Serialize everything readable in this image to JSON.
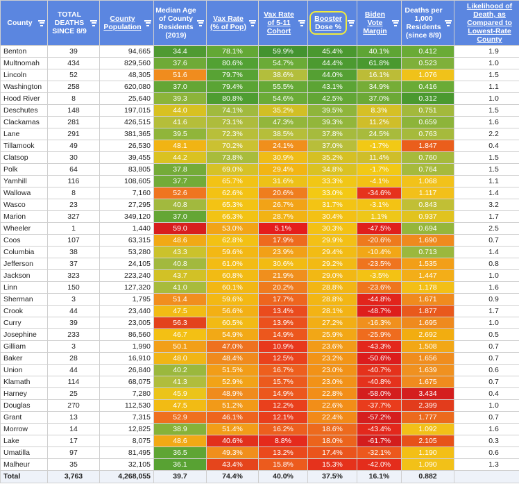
{
  "headers": [
    {
      "label": "County",
      "underline": false
    },
    {
      "label": "TOTAL DEATHS SINCE 8/9",
      "underline": false
    },
    {
      "label": "County Population",
      "underline": true
    },
    {
      "label": "Median Age of County Residents (2019)",
      "underline": false
    },
    {
      "label": "Vax Rate (% of Pop)",
      "underline": true
    },
    {
      "label": "Vax Rate of 5-11 Cohort",
      "underline": true
    },
    {
      "label": "Booster Dose %",
      "underline": true
    },
    {
      "label": "Biden Vote Margin",
      "underline": true
    },
    {
      "label": "Deaths per 1,000 Residents (since 8/9)",
      "underline": false
    },
    {
      "label": "Likelihood of Death, as Compared to Lowest-Rate County",
      "underline": true
    }
  ],
  "rows": [
    {
      "county": "Benton",
      "deaths": "39",
      "pop": "94,665",
      "age": "34.4",
      "vax": "78.1%",
      "cohort": "59.9%",
      "booster": "45.4%",
      "biden": "40.1%",
      "dpk": "0.412",
      "likely": "1.9",
      "c": [
        "#4f9a32",
        "#63a835",
        "#43932f",
        "#4a982f",
        "#5ea534",
        "#6aab36"
      ]
    },
    {
      "county": "Multnomah",
      "deaths": "434",
      "pop": "829,560",
      "age": "37.6",
      "vax": "80.6%",
      "cohort": "54.7%",
      "booster": "44.4%",
      "biden": "61.8%",
      "dpk": "0.523",
      "likely": "1.0",
      "c": [
        "#6faa37",
        "#52a133",
        "#6bab37",
        "#4c9a30",
        "#4a992f",
        "#7fb03a"
      ]
    },
    {
      "county": "Lincoln",
      "deaths": "52",
      "pop": "48,305",
      "age": "51.6",
      "vax": "79.7%",
      "cohort": "38.6%",
      "booster": "44.0%",
      "biden": "16.1%",
      "dpk": "1.076",
      "likely": "1.5",
      "c": [
        "#f08c1e",
        "#58a334",
        "#b3be3c",
        "#55a033",
        "#bcbc37",
        "#f0c21a"
      ]
    },
    {
      "county": "Washington",
      "deaths": "258",
      "pop": "620,080",
      "age": "37.0",
      "vax": "79.4%",
      "cohort": "55.5%",
      "booster": "43.1%",
      "biden": "34.9%",
      "dpk": "0.416",
      "likely": "1.1",
      "c": [
        "#64a635",
        "#5aa434",
        "#66a936",
        "#5ca434",
        "#76ad37",
        "#6aab36"
      ]
    },
    {
      "county": "Hood River",
      "deaths": "8",
      "pop": "25,640",
      "age": "39.3",
      "vax": "80.8%",
      "cohort": "54.6%",
      "booster": "42.5%",
      "biden": "37.0%",
      "dpk": "0.312",
      "likely": "1.0",
      "c": [
        "#8cb43a",
        "#4e9d31",
        "#6bab37",
        "#62a635",
        "#6ca936",
        "#4a992f"
      ]
    },
    {
      "county": "Deschutes",
      "deaths": "148",
      "pop": "197,015",
      "age": "44.0",
      "vax": "74.1%",
      "cohort": "35.2%",
      "booster": "39.5%",
      "biden": "8.3%",
      "dpk": "0.751",
      "likely": "1.5",
      "c": [
        "#d8c122",
        "#a1ba3e",
        "#d2bf25",
        "#8fb53b",
        "#d6c026",
        "#a3b93c"
      ]
    },
    {
      "county": "Clackamas",
      "deaths": "281",
      "pop": "426,515",
      "age": "41.6",
      "vax": "73.1%",
      "cohort": "47.3%",
      "booster": "39.3%",
      "biden": "11.2%",
      "dpk": "0.659",
      "likely": "1.6",
      "c": [
        "#b5be3a",
        "#aebc3c",
        "#93b63b",
        "#92b63b",
        "#cfbe2a",
        "#8db43a"
      ]
    },
    {
      "county": "Lane",
      "deaths": "291",
      "pop": "381,365",
      "age": "39.5",
      "vax": "72.3%",
      "cohort": "38.5%",
      "booster": "37.8%",
      "biden": "24.5%",
      "dpk": "0.763",
      "likely": "2.2",
      "c": [
        "#90b53a",
        "#b8bf3a",
        "#b6be3a",
        "#a6bb3d",
        "#a8bb3c",
        "#a6ba3c"
      ]
    },
    {
      "county": "Tillamook",
      "deaths": "49",
      "pop": "26,530",
      "age": "48.1",
      "vax": "70.2%",
      "cohort": "24.1%",
      "booster": "37.0%",
      "biden": "-1.7%",
      "dpk": "1.847",
      "likely": "0.4",
      "c": [
        "#f1b414",
        "#cbc131",
        "#f08f1c",
        "#b8be3a",
        "#f2c915",
        "#ea5e1c"
      ]
    },
    {
      "county": "Clatsop",
      "deaths": "30",
      "pop": "39,455",
      "age": "44.2",
      "vax": "73.8%",
      "cohort": "30.9%",
      "booster": "35.2%",
      "biden": "11.4%",
      "dpk": "0.760",
      "likely": "1.5",
      "c": [
        "#dac221",
        "#a8bc3c",
        "#efbc17",
        "#d5c024",
        "#cfbe2a",
        "#a6ba3c"
      ]
    },
    {
      "county": "Polk",
      "deaths": "64",
      "pop": "83,805",
      "age": "37.8",
      "vax": "69.0%",
      "cohort": "29.4%",
      "booster": "34.8%",
      "biden": "-1.7%",
      "dpk": "0.764",
      "likely": "1.5",
      "c": [
        "#74ab38",
        "#d6c226",
        "#f2b513",
        "#dac222",
        "#f2c915",
        "#a6ba3c"
      ]
    },
    {
      "county": "Yamhill",
      "deaths": "116",
      "pop": "108,605",
      "age": "37.7",
      "vax": "65.7%",
      "cohort": "31.6%",
      "booster": "33.3%",
      "biden": "-4.1%",
      "dpk": "1.068",
      "likely": "1.1",
      "c": [
        "#72ab38",
        "#f2c315",
        "#edc117",
        "#f1c715",
        "#f3c114",
        "#f2c21a"
      ]
    },
    {
      "county": "Wallowa",
      "deaths": "8",
      "pop": "7,160",
      "age": "52.6",
      "vax": "62.6%",
      "cohort": "20.6%",
      "booster": "33.0%",
      "biden": "-34.6%",
      "dpk": "1.117",
      "likely": "1.4",
      "c": [
        "#ef7520",
        "#f3c214",
        "#ef7d1e",
        "#f3c914",
        "#e6321c",
        "#f2c01a"
      ]
    },
    {
      "county": "Wasco",
      "deaths": "23",
      "pop": "27,295",
      "age": "40.8",
      "vax": "65.3%",
      "cohort": "26.7%",
      "booster": "31.7%",
      "biden": "-3.1%",
      "dpk": "0.843",
      "likely": "3.2",
      "c": [
        "#a2b93e",
        "#f3c314",
        "#f2a317",
        "#f3c414",
        "#f3c314",
        "#c1bf35"
      ]
    },
    {
      "county": "Marion",
      "deaths": "327",
      "pop": "349,120",
      "age": "37.0",
      "vax": "66.3%",
      "cohort": "28.7%",
      "booster": "30.4%",
      "biden": "1.1%",
      "dpk": "0.937",
      "likely": "1.7",
      "c": [
        "#64a635",
        "#f2c314",
        "#f2b314",
        "#f3c114",
        "#eec719",
        "#e1c31f"
      ]
    },
    {
      "county": "Wheeler",
      "deaths": "1",
      "pop": "1,440",
      "age": "59.0",
      "vax": "53.0%",
      "cohort": "5.1%",
      "booster": "30.3%",
      "biden": "-47.5%",
      "dpk": "0.694",
      "likely": "2.5",
      "c": [
        "#d81e1e",
        "#f2a416",
        "#e51c1c",
        "#f3c114",
        "#e01e1c",
        "#95b63b"
      ]
    },
    {
      "county": "Coos",
      "deaths": "107",
      "pop": "63,315",
      "age": "48.6",
      "vax": "62.8%",
      "cohort": "17.9%",
      "booster": "29.9%",
      "biden": "-20.6%",
      "dpk": "1.690",
      "likely": "0.7",
      "c": [
        "#f1a915",
        "#f3c114",
        "#ee6a1e",
        "#f3c016",
        "#ee7a1d",
        "#ef8a1e"
      ]
    },
    {
      "county": "Columbia",
      "deaths": "38",
      "pop": "53,280",
      "age": "43.3",
      "vax": "59.6%",
      "cohort": "23.9%",
      "booster": "29.4%",
      "biden": "-10.4%",
      "dpk": "0.713",
      "likely": "1.4",
      "c": [
        "#cbc22c",
        "#f3b814",
        "#f2a017",
        "#f2bc14",
        "#f2a716",
        "#9bb83d"
      ]
    },
    {
      "county": "Jefferson",
      "deaths": "37",
      "pop": "24,105",
      "age": "40.8",
      "vax": "61.0%",
      "cohort": "30.6%",
      "booster": "29.2%",
      "biden": "-23.5%",
      "dpk": "1.535",
      "likely": "0.8",
      "c": [
        "#a2b93e",
        "#f3bc14",
        "#f2bb13",
        "#f2ba14",
        "#ef741e",
        "#f29f18"
      ]
    },
    {
      "county": "Jackson",
      "deaths": "323",
      "pop": "223,240",
      "age": "43.7",
      "vax": "60.8%",
      "cohort": "21.9%",
      "booster": "29.0%",
      "biden": "-3.5%",
      "dpk": "1.447",
      "likely": "1.0",
      "c": [
        "#d2c126",
        "#f2bb14",
        "#f08f1d",
        "#f2b814",
        "#f3c214",
        "#f3ae18"
      ]
    },
    {
      "county": "Linn",
      "deaths": "150",
      "pop": "127,320",
      "age": "41.0",
      "vax": "60.1%",
      "cohort": "20.2%",
      "booster": "28.8%",
      "biden": "-23.6%",
      "dpk": "1.178",
      "likely": "1.6",
      "c": [
        "#a8bb3c",
        "#f2b714",
        "#ef7b1e",
        "#f2b614",
        "#ef751e",
        "#f3bf16"
      ]
    },
    {
      "county": "Sherman",
      "deaths": "3",
      "pop": "1,795",
      "age": "51.4",
      "vax": "59.6%",
      "cohort": "17.7%",
      "booster": "28.8%",
      "biden": "-44.8%",
      "dpk": "1.671",
      "likely": "0.9",
      "c": [
        "#f18e1e",
        "#f3b814",
        "#ee651e",
        "#f2b614",
        "#e2241c",
        "#f08b1e"
      ]
    },
    {
      "county": "Crook",
      "deaths": "44",
      "pop": "23,440",
      "age": "47.5",
      "vax": "56.6%",
      "cohort": "13.4%",
      "booster": "28.1%",
      "biden": "-48.7%",
      "dpk": "1.877",
      "likely": "1.7",
      "c": [
        "#f2bb14",
        "#f3b014",
        "#ea4b1d",
        "#f3b314",
        "#de1e1c",
        "#e9591c"
      ]
    },
    {
      "county": "Curry",
      "deaths": "39",
      "pop": "23,005",
      "age": "56.3",
      "vax": "60.5%",
      "cohort": "13.9%",
      "booster": "27.2%",
      "biden": "-16.3%",
      "dpk": "1.695",
      "likely": "1.0",
      "c": [
        "#e3421c",
        "#f2ba14",
        "#eb501d",
        "#f2ae15",
        "#f0901d",
        "#ef8a1e"
      ]
    },
    {
      "county": "Josephine",
      "deaths": "233",
      "pop": "86,560",
      "age": "46.7",
      "vax": "54.9%",
      "cohort": "14.9%",
      "booster": "25.9%",
      "biden": "-25.9%",
      "dpk": "2.692",
      "likely": "0.5",
      "c": [
        "#f3c014",
        "#f2a916",
        "#ec571d",
        "#f2a716",
        "#ef6c1e",
        "#f2ad10"
      ]
    },
    {
      "county": "Gilliam",
      "deaths": "3",
      "pop": "1,990",
      "age": "50.1",
      "vax": "47.0%",
      "cohort": "10.9%",
      "booster": "23.6%",
      "biden": "-43.3%",
      "dpk": "1.508",
      "likely": "0.7",
      "c": [
        "#f29f18",
        "#ee711f",
        "#e8381c",
        "#f29b18",
        "#e3281c",
        "#f2a716"
      ]
    },
    {
      "county": "Baker",
      "deaths": "28",
      "pop": "16,910",
      "age": "48.0",
      "vax": "48.4%",
      "cohort": "12.5%",
      "booster": "23.2%",
      "biden": "-50.6%",
      "dpk": "1.656",
      "likely": "0.7",
      "c": [
        "#f1b515",
        "#f08a1d",
        "#ea421c",
        "#f29417",
        "#dc1c1c",
        "#f08d1e"
      ]
    },
    {
      "county": "Union",
      "deaths": "44",
      "pop": "26,840",
      "age": "40.2",
      "vax": "51.5%",
      "cohort": "16.7%",
      "booster": "23.0%",
      "biden": "-40.7%",
      "dpk": "1.639",
      "likely": "0.6",
      "c": [
        "#9bb83d",
        "#f29d18",
        "#ee5f1e",
        "#f29217",
        "#e5321c",
        "#f09120"
      ]
    },
    {
      "county": "Klamath",
      "deaths": "114",
      "pop": "68,075",
      "age": "41.3",
      "vax": "52.9%",
      "cohort": "15.7%",
      "booster": "23.0%",
      "biden": "-40.8%",
      "dpk": "1.675",
      "likely": "0.7",
      "c": [
        "#b0bd3c",
        "#f2a317",
        "#ec5a1d",
        "#f29217",
        "#e5321c",
        "#f08b1e"
      ]
    },
    {
      "county": "Harney",
      "deaths": "25",
      "pop": "7,280",
      "age": "45.9",
      "vax": "48.9%",
      "cohort": "14.9%",
      "booster": "22.8%",
      "biden": "-58.0%",
      "dpk": "3.434",
      "likely": "0.4",
      "c": [
        "#ebc41a",
        "#f08b1d",
        "#ec571d",
        "#f28e18",
        "#d41e1e",
        "#d41e1e"
      ]
    },
    {
      "county": "Douglas",
      "deaths": "270",
      "pop": "112,530",
      "age": "47.5",
      "vax": "51.2%",
      "cohort": "12.2%",
      "booster": "22.6%",
      "biden": "-37.7%",
      "dpk": "2.399",
      "likely": "1.0",
      "c": [
        "#f2bb14",
        "#f29a18",
        "#e9401c",
        "#f28e18",
        "#e93c1c",
        "#e23c1c"
      ]
    },
    {
      "county": "Grant",
      "deaths": "13",
      "pop": "7,315",
      "age": "52.9",
      "vax": "46.1%",
      "cohort": "12.1%",
      "booster": "22.4%",
      "biden": "-57.2%",
      "dpk": "1.777",
      "likely": "0.7",
      "c": [
        "#ef701f",
        "#ee641e",
        "#e93e1c",
        "#f28a18",
        "#d51e1e",
        "#ec6a1d"
      ]
    },
    {
      "county": "Morrow",
      "deaths": "14",
      "pop": "12,825",
      "age": "38.9",
      "vax": "51.4%",
      "cohort": "16.2%",
      "booster": "18.6%",
      "biden": "-43.4%",
      "dpk": "1.092",
      "likely": "1.6",
      "c": [
        "#86b239",
        "#f29d18",
        "#ed5f1e",
        "#ed6a1d",
        "#e3281c",
        "#f2c018"
      ]
    },
    {
      "county": "Lake",
      "deaths": "17",
      "pop": "8,075",
      "age": "48.6",
      "vax": "40.6%",
      "cohort": "8.8%",
      "booster": "18.0%",
      "biden": "-61.7%",
      "dpk": "2.105",
      "likely": "0.3",
      "c": [
        "#f1a915",
        "#e2301c",
        "#e52a1c",
        "#ec641c",
        "#d31d1d",
        "#e75219"
      ]
    },
    {
      "county": "Umatilla",
      "deaths": "97",
      "pop": "81,495",
      "age": "36.5",
      "vax": "49.3%",
      "cohort": "13.2%",
      "booster": "17.4%",
      "biden": "-32.1%",
      "dpk": "1.190",
      "likely": "0.6",
      "c": [
        "#5fa534",
        "#f08f1d",
        "#ea491c",
        "#ea541c",
        "#ec581d",
        "#f3bf16"
      ]
    },
    {
      "county": "Malheur",
      "deaths": "35",
      "pop": "32,105",
      "age": "36.1",
      "vax": "43.4%",
      "cohort": "15.8%",
      "booster": "15.3%",
      "biden": "-42.0%",
      "dpk": "1.090",
      "likely": "1.3",
      "c": [
        "#58a233",
        "#e5451c",
        "#ec5b1d",
        "#e5321c",
        "#e42d1c",
        "#f2c118"
      ]
    }
  ],
  "total": {
    "county": "Total",
    "deaths": "3,763",
    "pop": "4,268,055",
    "age": "39.7",
    "vax": "74.4%",
    "cohort": "40.0%",
    "booster": "37.5%",
    "biden": "16.1%",
    "dpk": "0.882",
    "likely": ""
  },
  "colors": {
    "header_bg": "#5b86e0",
    "booster_highlight": "#f2ec3c"
  }
}
